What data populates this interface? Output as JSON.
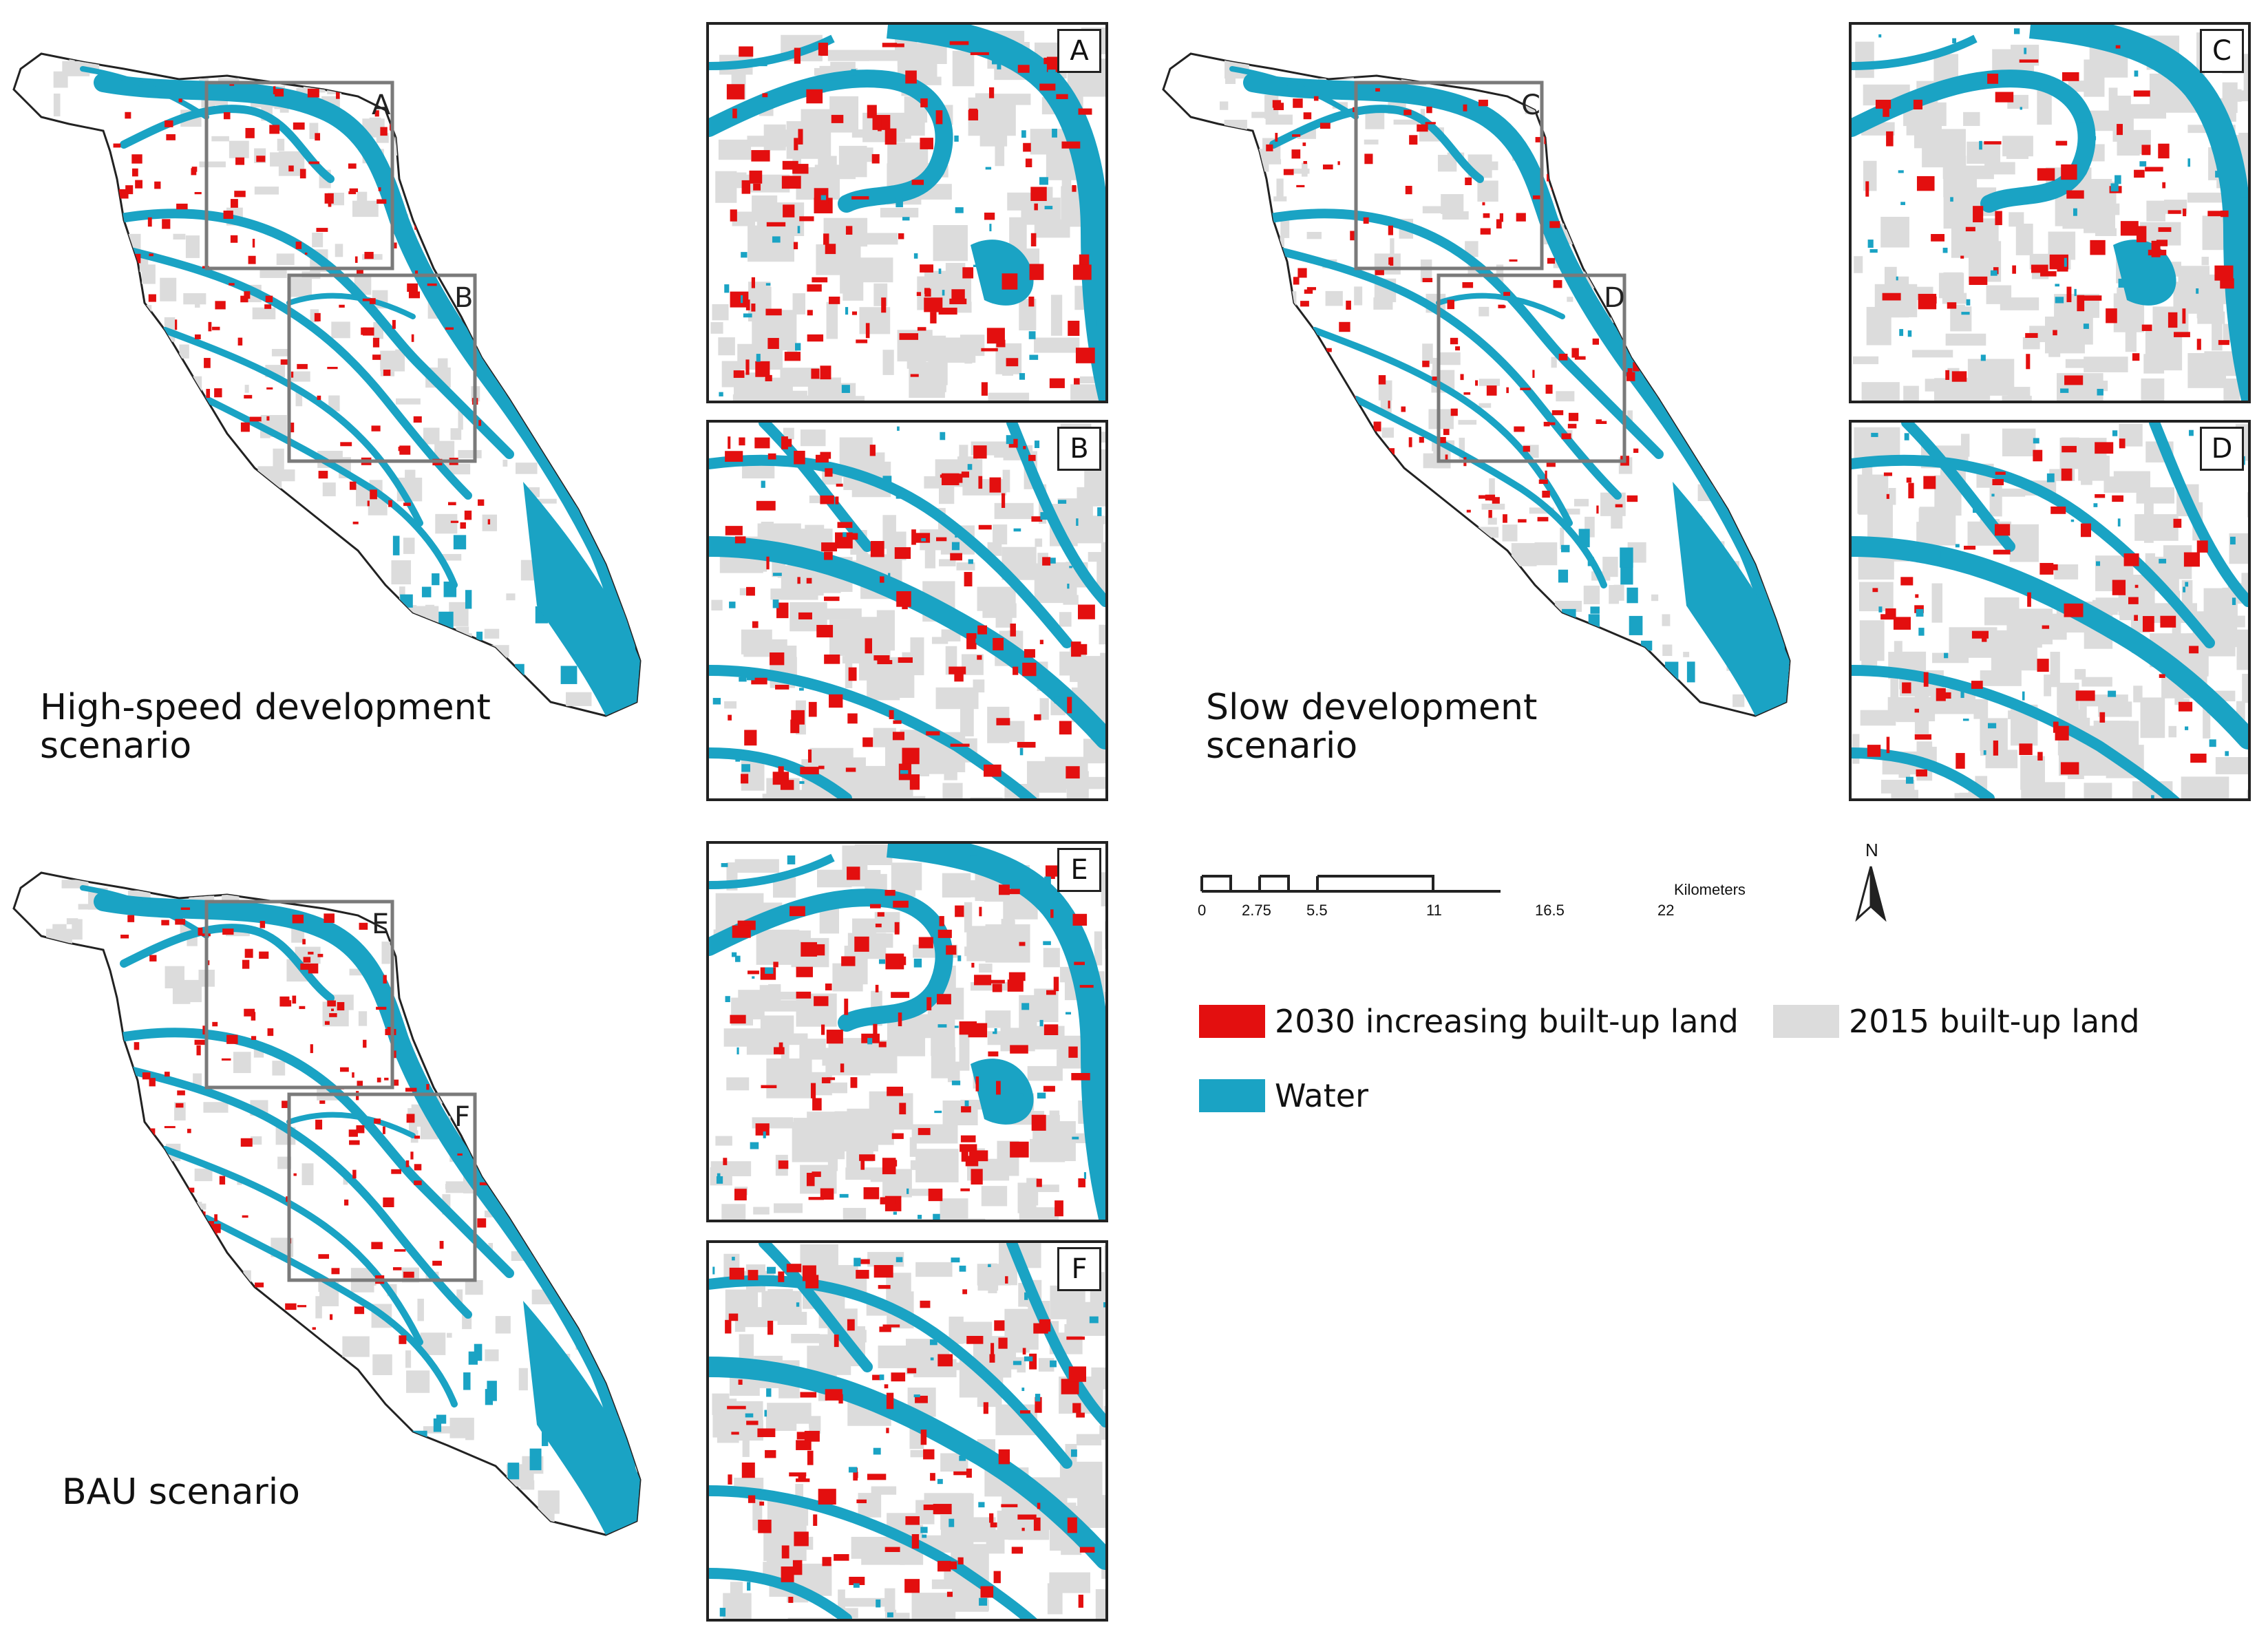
{
  "colors": {
    "water": "#1aa3c4",
    "built_2015": "#dcdcdc",
    "increase_2030": "#e30f0f",
    "outline": "#222222",
    "box": "#7a7a7a"
  },
  "scenarios": [
    {
      "id": "high",
      "label": "High-speed development scenario",
      "box_letters": [
        "A",
        "B"
      ]
    },
    {
      "id": "slow",
      "label": "Slow development scenario",
      "box_letters": [
        "C",
        "D"
      ]
    },
    {
      "id": "bau",
      "label": "BAU scenario",
      "box_letters": [
        "E",
        "F"
      ]
    }
  ],
  "insets": [
    "A",
    "B",
    "C",
    "D",
    "E",
    "F"
  ],
  "scale_bar": {
    "unit": "Kilometers",
    "ticks": [
      "0",
      "2.75",
      "5.5",
      "11",
      "16.5",
      "22"
    ]
  },
  "north_arrow": {
    "label": "N"
  },
  "legend": {
    "items": [
      {
        "label": "2030 increasing built-up land",
        "color": "#e30f0f"
      },
      {
        "label": "2015 built-up land",
        "color": "#dcdcdc"
      },
      {
        "label": "Water",
        "color": "#1aa3c4"
      }
    ]
  }
}
